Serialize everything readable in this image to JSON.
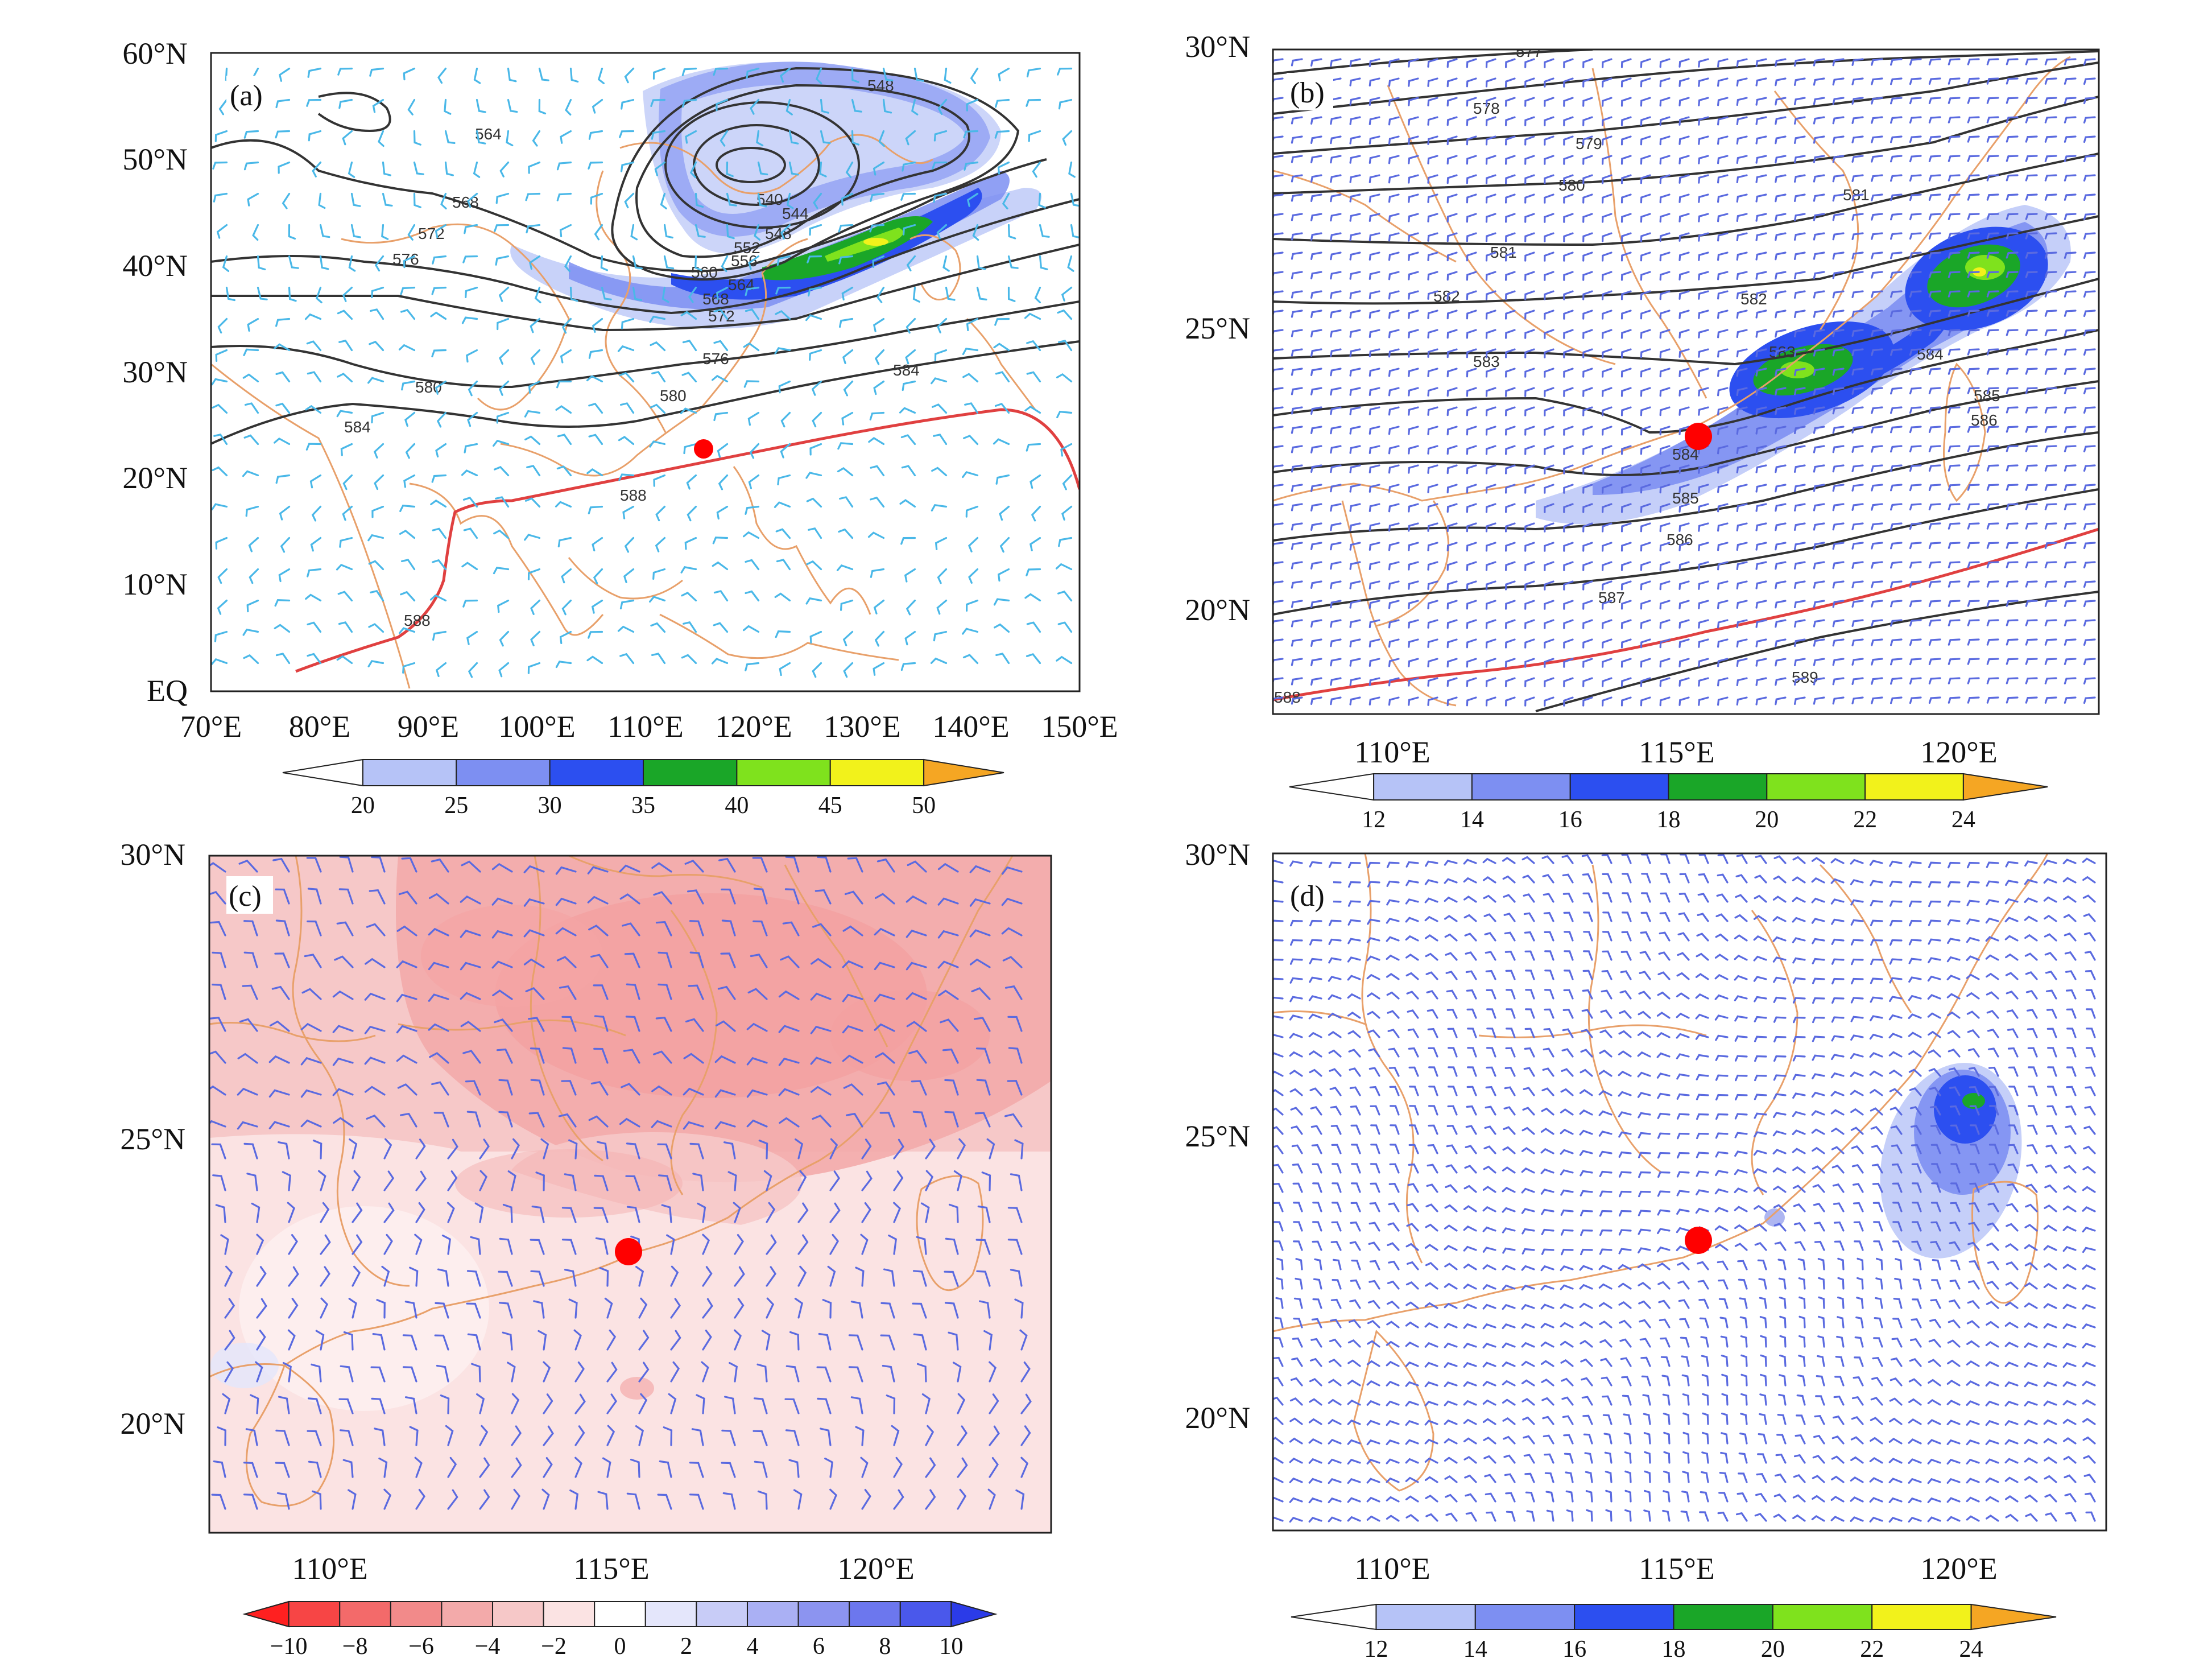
{
  "panels": [
    {
      "id": "a",
      "label": "(a)",
      "extent": {
        "lon": [
          70,
          150
        ],
        "lat": [
          0,
          60
        ]
      },
      "y_ticks": [
        "60°N",
        "50°N",
        "40°N",
        "30°N",
        "20°N",
        "10°N",
        "EQ"
      ],
      "x_ticks": [
        "70°E",
        "80°E",
        "90°E",
        "100°E",
        "110°E",
        "120°E",
        "130°E",
        "140°E",
        "150°E"
      ],
      "contour_labels": [
        "548",
        "564",
        "568",
        "572",
        "576",
        "540",
        "544",
        "548",
        "552",
        "556",
        "560",
        "564",
        "568",
        "572",
        "576",
        "580",
        "584",
        "580",
        "584",
        "588",
        "588"
      ],
      "red_contour": "588",
      "marker": {
        "lon": 116.0,
        "lat": 23.0,
        "color": "#ff0000"
      },
      "colorbar": {
        "ticks": [
          "20",
          "25",
          "30",
          "35",
          "40",
          "45",
          "50"
        ],
        "colors": [
          "#b6c3f7",
          "#7d8ff2",
          "#2c4ff0",
          "#1aa628",
          "#7fe21d",
          "#f2f21b",
          "#f5a623"
        ]
      }
    },
    {
      "id": "b",
      "label": "(b)",
      "extent": {
        "lon": [
          108,
          123
        ],
        "lat": [
          18,
          30
        ]
      },
      "y_ticks": [
        "30°N",
        "25°N",
        "20°N"
      ],
      "x_ticks": [
        "110°E",
        "115°E",
        "120°E"
      ],
      "contour_labels": [
        "577",
        "578",
        "579",
        "580",
        "581",
        "581",
        "582",
        "582",
        "583",
        "583",
        "584",
        "584",
        "585",
        "585",
        "586",
        "586",
        "587",
        "588",
        "589"
      ],
      "red_contour": "588",
      "marker": {
        "lon": 115.5,
        "lat": 23.1,
        "color": "#ff0000"
      },
      "colorbar": {
        "ticks": [
          "12",
          "14",
          "16",
          "18",
          "20",
          "22",
          "24"
        ],
        "colors": [
          "#b6c3f7",
          "#7d8ff2",
          "#2c4ff0",
          "#1aa628",
          "#7fe21d",
          "#f2f21b",
          "#f5a623"
        ]
      }
    },
    {
      "id": "c",
      "label": "(c)",
      "extent": {
        "lon": [
          108,
          123
        ],
        "lat": [
          18,
          30
        ]
      },
      "y_ticks": [
        "30°N",
        "25°N",
        "20°N"
      ],
      "x_ticks": [
        "110°E",
        "115°E",
        "120°E"
      ],
      "marker": {
        "lon": 115.5,
        "lat": 23.0,
        "color": "#ff0000"
      },
      "colorbar": {
        "ticks": [
          "−10",
          "−8",
          "−6",
          "−4",
          "−2",
          "0",
          "2",
          "4",
          "6",
          "8",
          "10"
        ],
        "colors": [
          "#ff2020",
          "#f74545",
          "#f36a6a",
          "#f28a8a",
          "#f3aaaa",
          "#f6c8c8",
          "#fbe3e3",
          "#ffffff",
          "#e4e6fb",
          "#c8ccf7",
          "#aab0f4",
          "#8c94f0",
          "#6c77ee",
          "#4a58eb",
          "#2b3be8"
        ]
      }
    },
    {
      "id": "d",
      "label": "(d)",
      "extent": {
        "lon": [
          108,
          123
        ],
        "lat": [
          18,
          30
        ]
      },
      "y_ticks": [
        "30°N",
        "25°N",
        "20°N"
      ],
      "x_ticks": [
        "110°E",
        "115°E",
        "120°E"
      ],
      "marker": {
        "lon": 115.5,
        "lat": 23.1,
        "color": "#ff0000"
      },
      "colorbar": {
        "ticks": [
          "12",
          "14",
          "16",
          "18",
          "20",
          "22",
          "24"
        ],
        "colors": [
          "#b6c3f7",
          "#7d8ff2",
          "#2c4ff0",
          "#1aa628",
          "#7fe21d",
          "#f2f21b",
          "#f5a623"
        ]
      }
    }
  ],
  "colors": {
    "coast": "#e8a06a",
    "contour": "#333333",
    "red_contour": "#e04040",
    "barb_a": "#4ab8e8",
    "barb_bcd": "#5a6ae0"
  }
}
